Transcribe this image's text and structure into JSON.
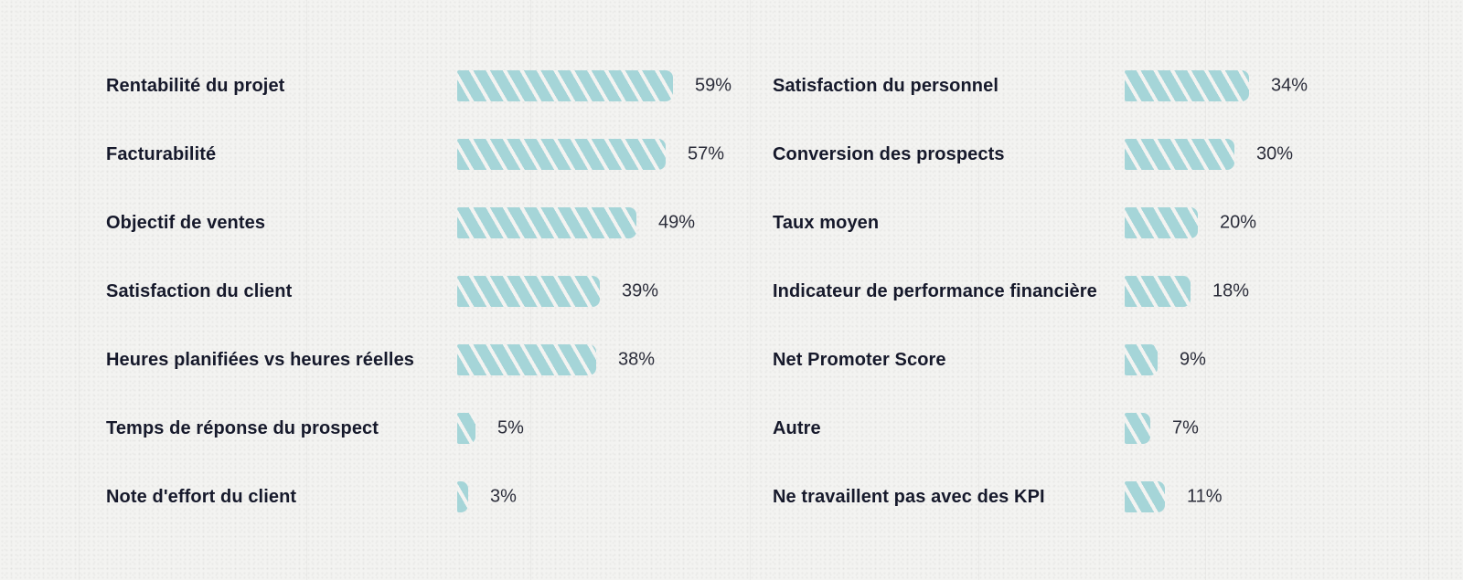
{
  "chart_data": {
    "type": "bar",
    "orientation": "horizontal",
    "value_suffix": "%",
    "bar_color": "#a5d5d8",
    "bar_pattern": "diagonal-stripes",
    "groups": [
      {
        "categories": [
          "Rentabilité du projet",
          "Facturabilité",
          "Objectif de ventes",
          "Satisfaction du client",
          "Heures planifiées vs heures réelles",
          "Temps de réponse du prospect",
          "Note d'effort du client"
        ],
        "values": [
          59,
          57,
          49,
          39,
          38,
          5,
          3
        ],
        "labels": [
          "59%",
          "57%",
          "49%",
          "39%",
          "38%",
          "5%",
          "3%"
        ]
      },
      {
        "categories": [
          "Satisfaction du personnel",
          "Conversion des prospects",
          "Taux moyen",
          "Indicateur de performance financière",
          "Net Promoter Score",
          "Autre",
          "Ne travaillent pas avec des KPI"
        ],
        "values": [
          34,
          30,
          20,
          18,
          9,
          7,
          11
        ],
        "labels": [
          "34%",
          "30%",
          "20%",
          "18%",
          "9%",
          "7%",
          "11%"
        ]
      }
    ]
  }
}
